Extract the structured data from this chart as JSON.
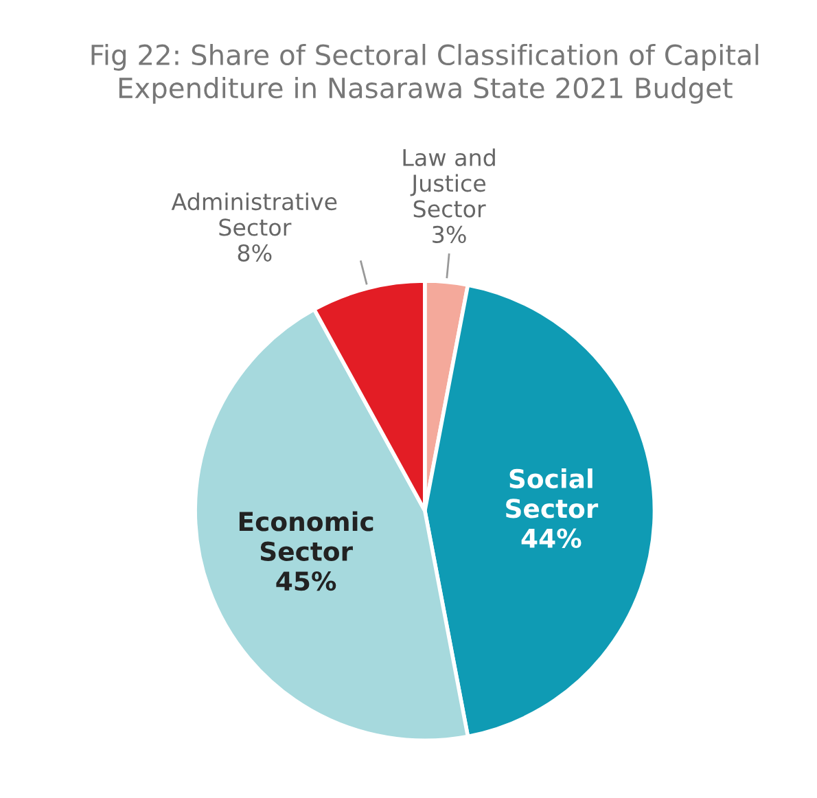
{
  "chart_data": {
    "type": "pie",
    "title": "Fig 22: Share of Sectoral Classification of Capital Expenditure in Nasarawa State 2021 Budget",
    "categories": [
      "Law and\nJustice\nSector",
      "Social\nSector",
      "Economic\nSector",
      "Administrative\nSector"
    ],
    "values": [
      3,
      44,
      45,
      8
    ],
    "value_labels": [
      "3%",
      "44%",
      "45%",
      "8%"
    ],
    "colors": [
      "#f4a99b",
      "#0f9bb4",
      "#a6d9dd",
      "#e31d25"
    ],
    "legend": false
  }
}
